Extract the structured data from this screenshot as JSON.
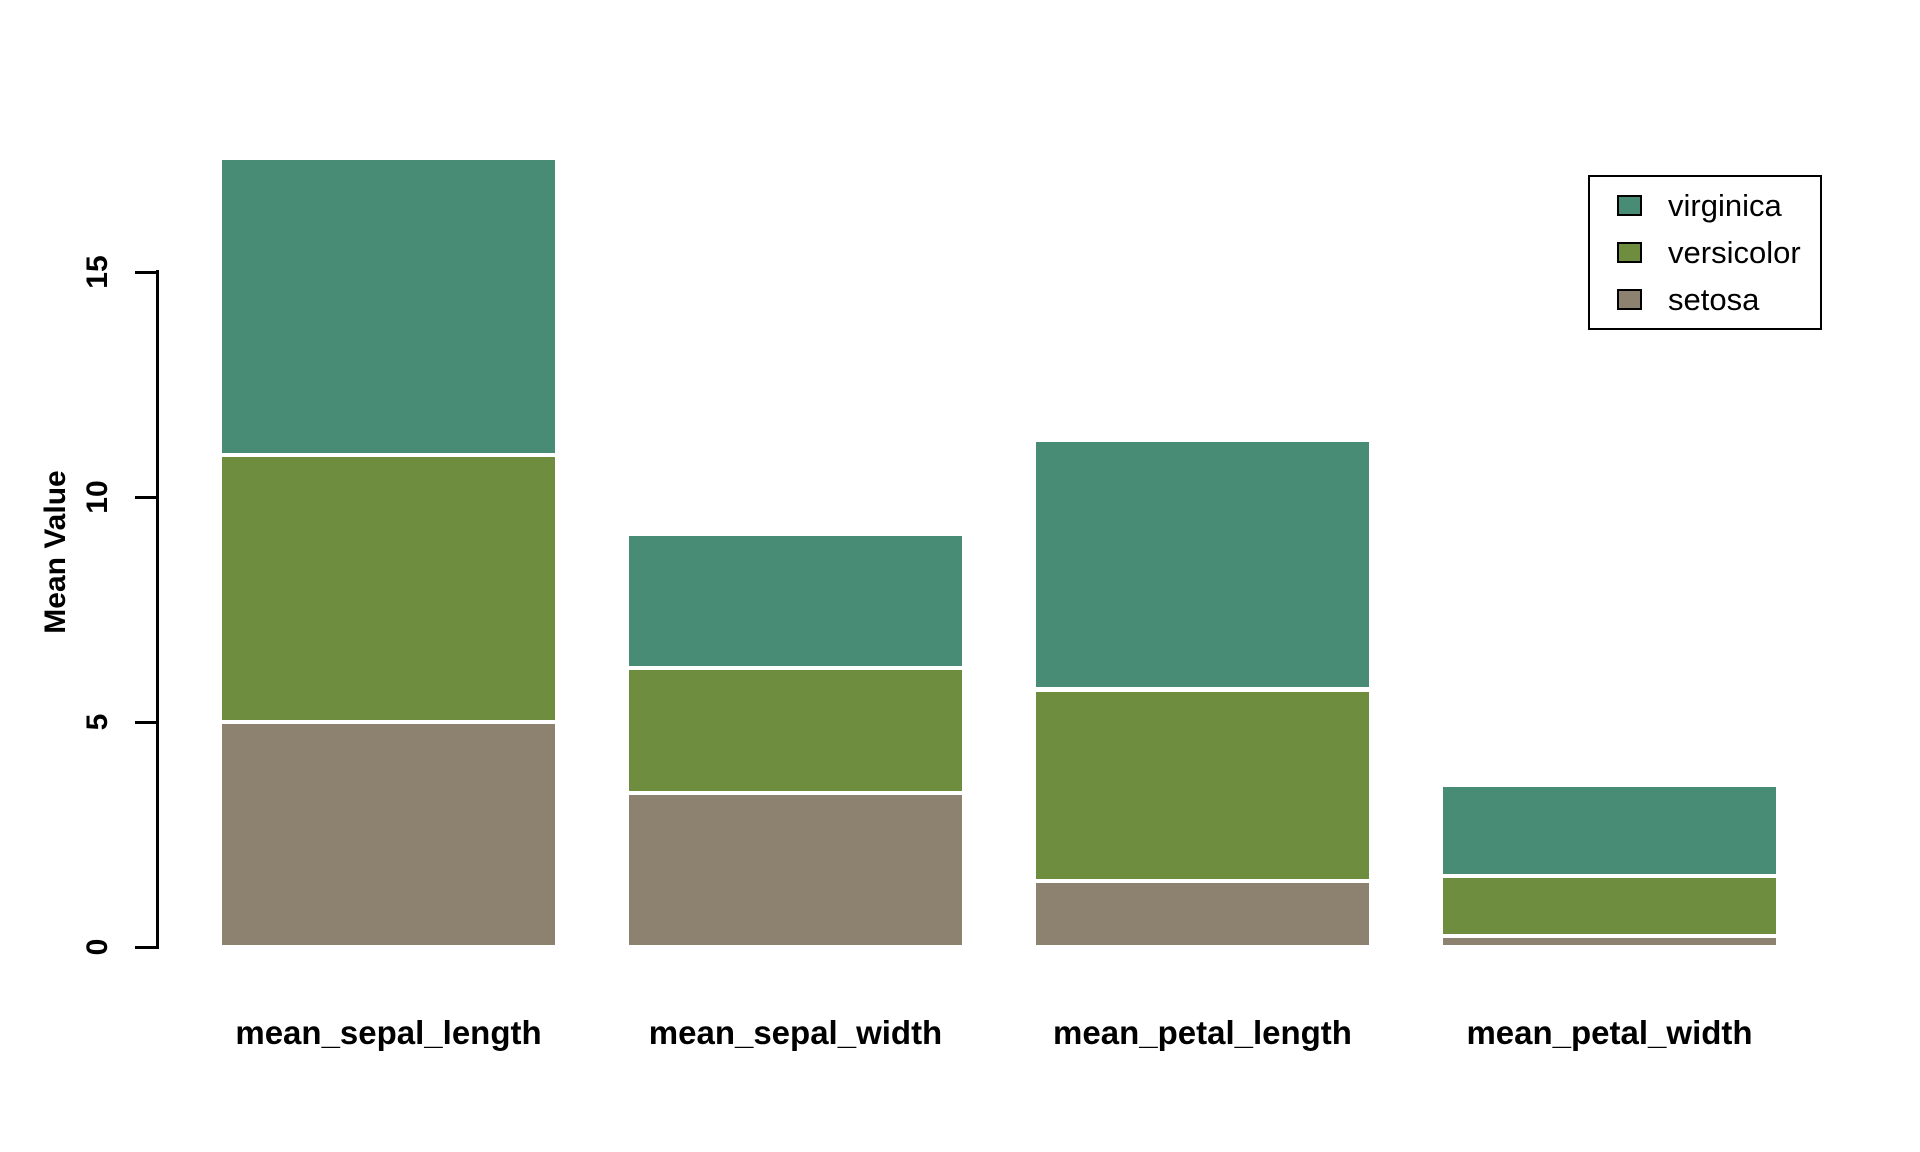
{
  "chart_data": {
    "type": "bar",
    "stacked": true,
    "title": "",
    "xlabel": "",
    "ylabel": "Mean Value",
    "categories": [
      "mean_sepal_length",
      "mean_sepal_width",
      "mean_petal_length",
      "mean_petal_width"
    ],
    "series": [
      {
        "name": "setosa",
        "color": "#8D8170",
        "values": [
          5.006,
          3.428,
          1.462,
          0.246
        ]
      },
      {
        "name": "versicolor",
        "color": "#6E8D3E",
        "values": [
          5.936,
          2.77,
          4.26,
          1.326
        ]
      },
      {
        "name": "virginica",
        "color": "#488C76",
        "values": [
          6.588,
          2.974,
          5.552,
          2.026
        ]
      }
    ],
    "stack_order_bottom_to_top": [
      "setosa",
      "versicolor",
      "virginica"
    ],
    "stack_totals": [
      17.53,
      9.172,
      11.274,
      3.598
    ],
    "y_ticks": [
      0,
      5,
      10,
      15
    ],
    "y_tick_labels": [
      "0",
      "5",
      "10",
      "15"
    ],
    "ylim": [
      0,
      17.53
    ],
    "grid": false,
    "background": "#ffffff",
    "axis_color": "#000000",
    "legend": {
      "position": "top-right",
      "entries": [
        {
          "label": "virginica",
          "color": "#488C76"
        },
        {
          "label": "versicolor",
          "color": "#6E8D3E"
        },
        {
          "label": "setosa",
          "color": "#8D8170"
        }
      ]
    }
  }
}
